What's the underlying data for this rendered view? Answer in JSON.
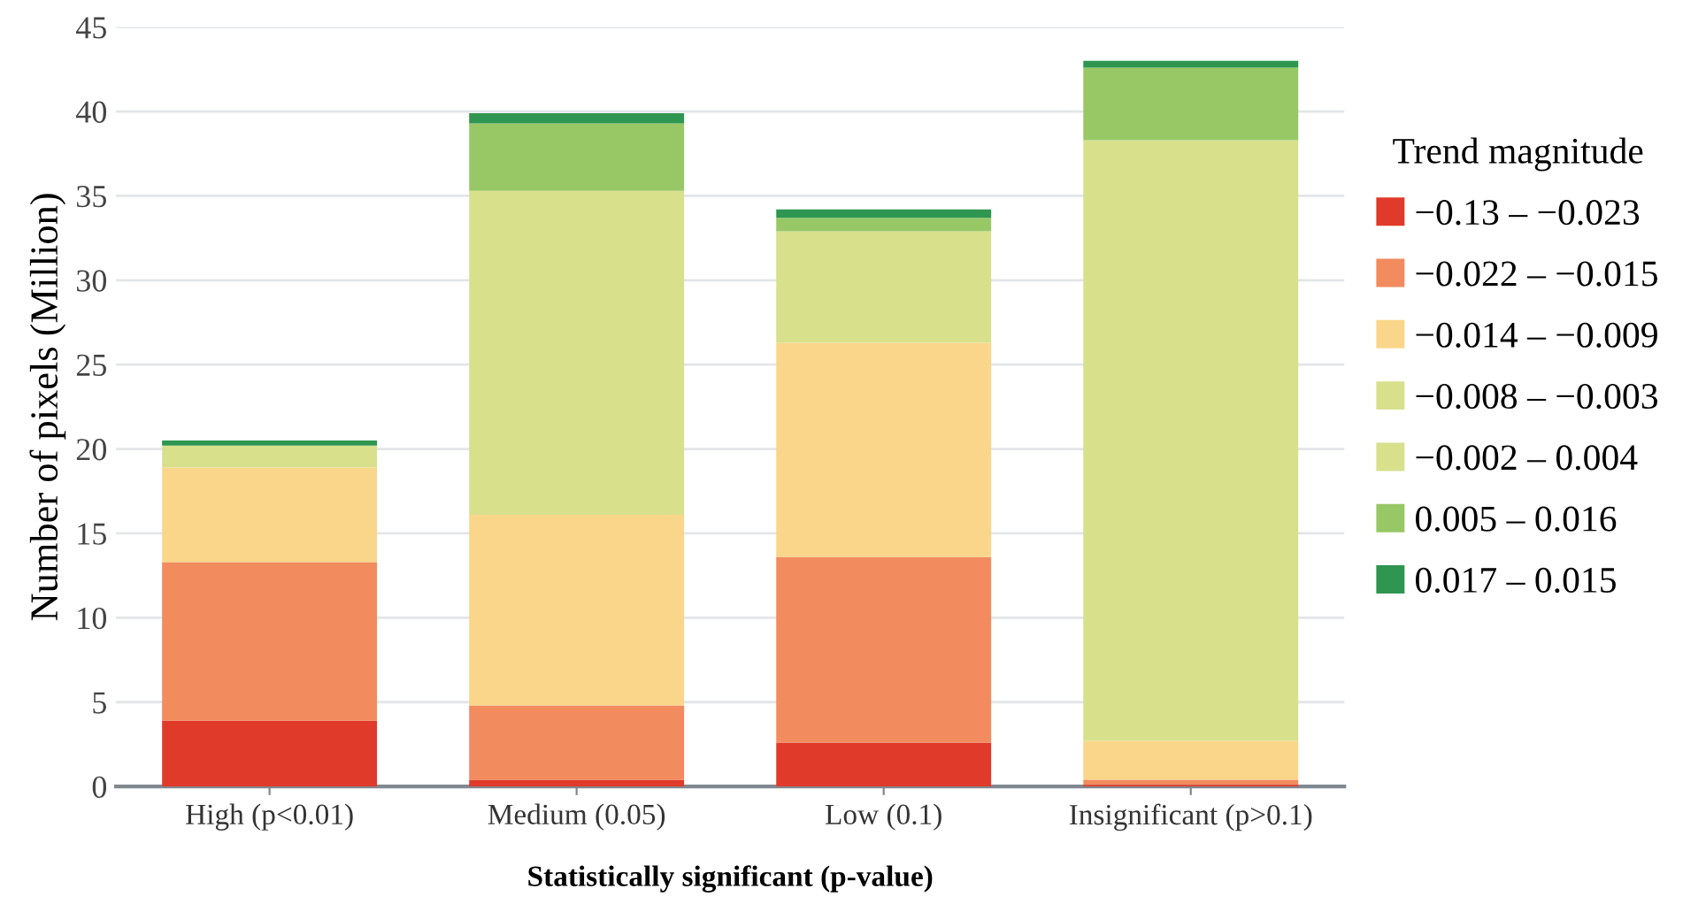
{
  "chart_data": {
    "type": "bar",
    "stacked": true,
    "xlabel": "Statistically significant (p-value)",
    "ylabel": "Number of pixels (Million)",
    "legend_title": "Trend magnitude",
    "categories": [
      "High (p<0.01)",
      "Medium (0.05)",
      "Low (0.1)",
      "Insignificant (p>0.1)"
    ],
    "series": [
      {
        "name": "−0.13 – −0.023",
        "color": "#e03a2a",
        "values": [
          3.9,
          0.4,
          2.6,
          0.1
        ]
      },
      {
        "name": "−0.022 – −0.015",
        "color": "#f28b5e",
        "values": [
          9.4,
          4.4,
          11.0,
          0.3
        ]
      },
      {
        "name": "−0.014 – −0.009",
        "color": "#f9d68a",
        "values": [
          5.6,
          11.3,
          12.7,
          2.3
        ]
      },
      {
        "name": "−0.008 – −0.003",
        "color": "#d8e08c",
        "values": [
          1.3,
          19.2,
          6.6,
          35.6
        ]
      },
      {
        "name": "−0.002 – 0.004",
        "color": "#d8e08c",
        "values": [
          0,
          0,
          0,
          0
        ]
      },
      {
        "name": "0.005 – 0.016",
        "color": "#98c866",
        "values": [
          0,
          4.0,
          0.8,
          4.3
        ]
      },
      {
        "name": "0.017 – 0.015",
        "color": "#2e9650",
        "values": [
          0.3,
          0.6,
          0.5,
          0.4
        ]
      }
    ],
    "ylim": [
      0,
      45
    ],
    "yticks": [
      0,
      5,
      10,
      15,
      20,
      25,
      30,
      35,
      40,
      45
    ],
    "grid": "y",
    "legend": "right"
  }
}
